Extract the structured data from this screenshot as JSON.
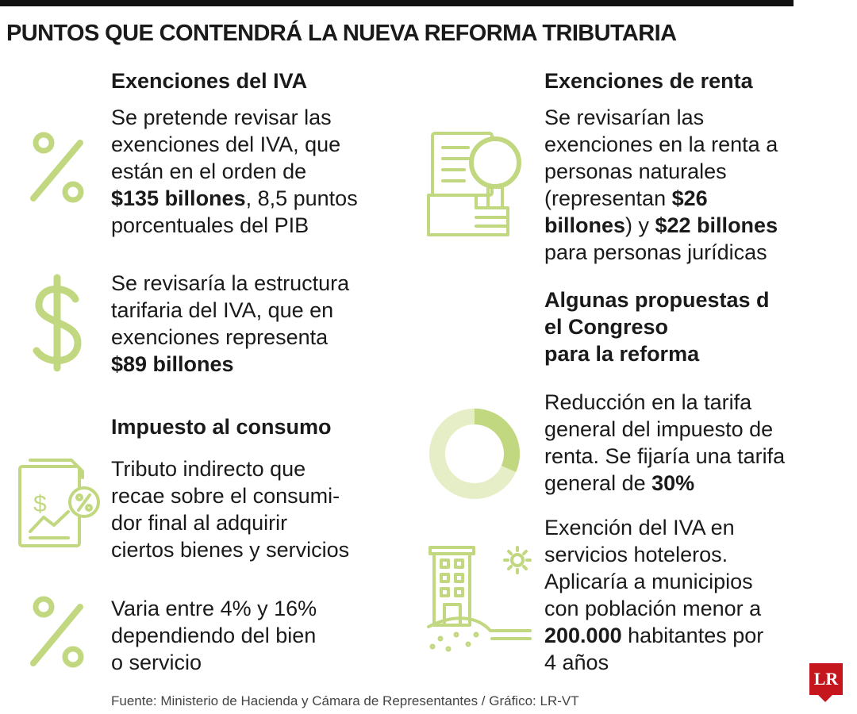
{
  "title": "PUNTOS QUE CONTENDRÁ LA NUEVA REFORMA TRIBUTARIA",
  "blocks": [
    {
      "heading": "Exenciones del IVA",
      "lines": [
        "Se pretende revisar las",
        "exenciones del IVA, que",
        "están en el orden de",
        [
          "$135 billones",
          ", 8,5 puntos"
        ],
        "porcentuales del PIB"
      ]
    },
    {
      "lines": [
        "Se revisaría la estructura",
        "tarifaria del IVA, que en",
        "exenciones representa",
        "$89 billones"
      ]
    },
    {
      "heading": "Impuesto al consumo",
      "lines": [
        "Tributo indirecto que",
        "recae sobre el consumi-",
        "dor final al adquirir",
        "ciertos bienes y servicios"
      ]
    },
    {
      "lines": [
        "Varia entre 4% y 16%",
        "dependiendo del bien",
        "o servicio"
      ]
    },
    {
      "heading": "Exenciones de renta",
      "lines": [
        "Se revisarían las",
        "exenciones en la renta a",
        "personas naturales",
        [
          "(representan ",
          "$26"
        ],
        [
          "billones",
          ") y ",
          "$22 billones"
        ],
        "para personas jurídicas"
      ]
    },
    {
      "heading_lines": [
        "Algunas propuestas d",
        "el Congreso",
        "para la reforma"
      ]
    },
    {
      "lines": [
        "Reducción en la tarifa",
        "general del impuesto de",
        "renta. Se fijaría una tarifa",
        [
          "general de ",
          "30%"
        ]
      ]
    },
    {
      "lines": [
        "Exención del IVA en",
        "servicios hoteleros.",
        "Aplicaría a municipios",
        "con población menor a",
        [
          "200.000",
          " habitantes por"
        ],
        "4 años"
      ]
    }
  ],
  "source": "Fuente: Ministerio de Hacienda y Cámara de Representantes / Gráfico: LR-VT",
  "logo": "LR"
}
